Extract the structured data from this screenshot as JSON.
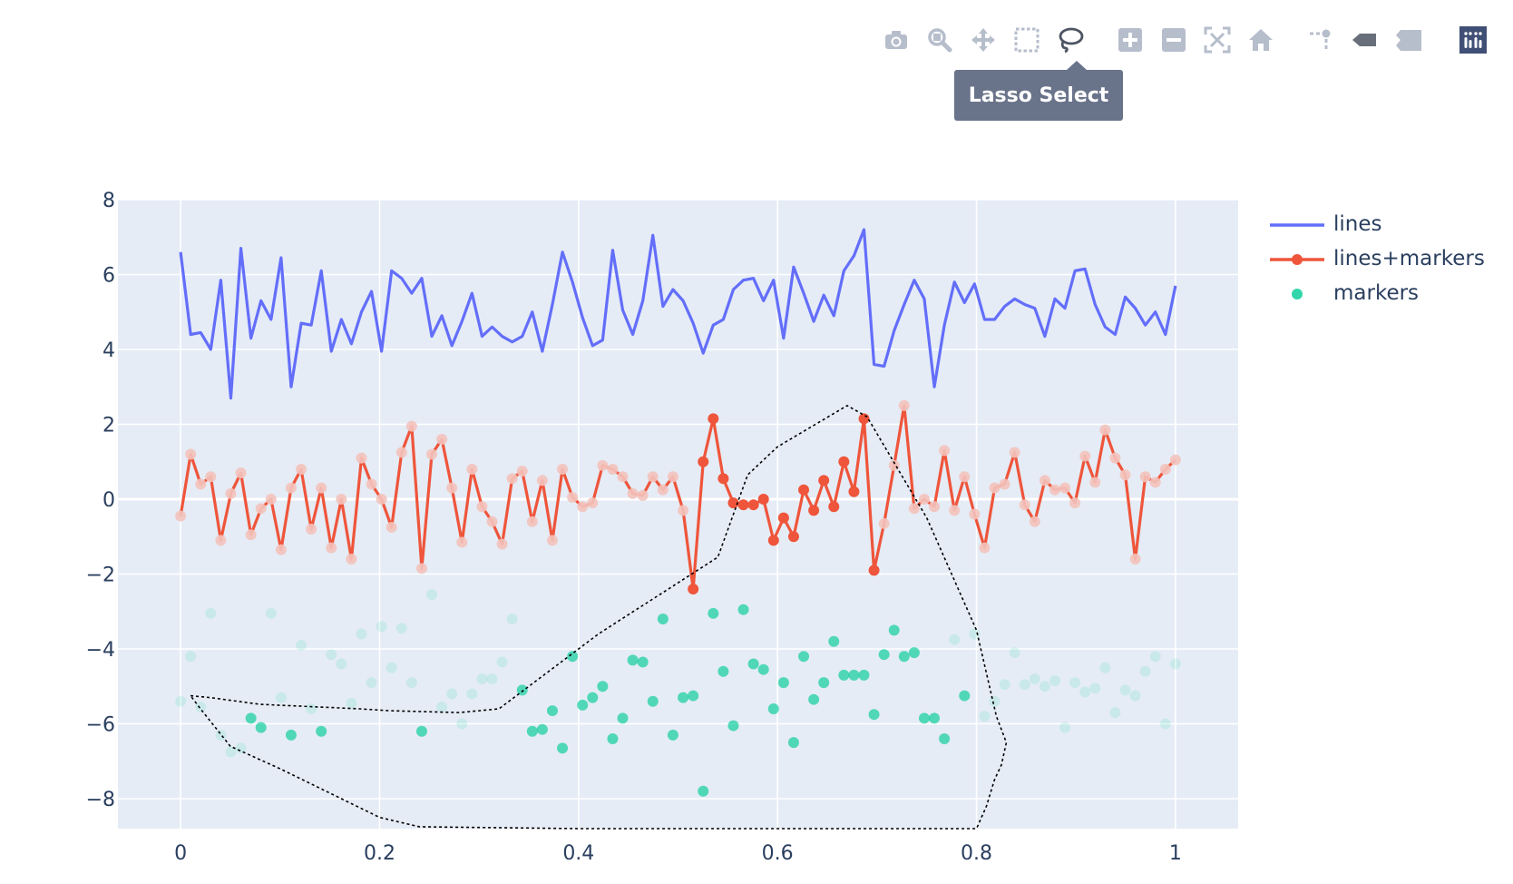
{
  "modebar": {
    "buttons": [
      {
        "name": "camera-icon",
        "tip": "Download plot as a png"
      },
      {
        "name": "zoom-icon",
        "tip": "Zoom"
      },
      {
        "name": "pan-icon",
        "tip": "Pan"
      },
      {
        "name": "box-select-icon",
        "tip": "Box Select"
      },
      {
        "name": "lasso-select-icon",
        "tip": "Lasso Select"
      },
      {
        "name": "zoom-in-icon",
        "tip": "Zoom in"
      },
      {
        "name": "zoom-out-icon",
        "tip": "Zoom out"
      },
      {
        "name": "autoscale-icon",
        "tip": "Autoscale"
      },
      {
        "name": "home-icon",
        "tip": "Reset axes"
      },
      {
        "name": "spike-lines-icon",
        "tip": "Toggle Spike Lines"
      },
      {
        "name": "hover-closest-icon",
        "tip": "Show closest data on hover"
      },
      {
        "name": "hover-compare-icon",
        "tip": "Compare data on hover"
      },
      {
        "name": "plotly-logo-icon",
        "tip": "Produced with Plotly"
      }
    ],
    "active_tooltip": "Lasso Select"
  },
  "colors": {
    "lines": "#636efa",
    "lines_markers": "#ef553b",
    "markers": "#00cc96",
    "plot_bg": "#e5ecf6",
    "grid": "#ffffff",
    "text": "#2a3f5f",
    "modebar_icon": "#b6bdcb"
  },
  "chart_data": {
    "type": "line",
    "title": "",
    "xlabel": "",
    "ylabel": "",
    "xlim": [
      -0.063,
      1.063
    ],
    "ylim": [
      -8.8,
      8
    ],
    "xticks": [
      0,
      0.2,
      0.4,
      0.6,
      0.8,
      1
    ],
    "xtick_labels": [
      "0",
      "0.2",
      "0.4",
      "0.6",
      "0.8",
      "1"
    ],
    "yticks": [
      8,
      6,
      4,
      2,
      0,
      -2,
      -4,
      -6,
      -8
    ],
    "ytick_labels": [
      "8",
      "6",
      "4",
      "2",
      "0",
      "−2",
      "−4",
      "−6",
      "−8"
    ],
    "grid": true,
    "legend_position": "top-right",
    "series": [
      {
        "name": "lines",
        "mode": "lines",
        "x": [
          0,
          0.0101,
          0.0202,
          0.0303,
          0.0404,
          0.0505,
          0.0606,
          0.0707,
          0.0808,
          0.0909,
          0.101,
          0.1111,
          0.1212,
          0.1313,
          0.1414,
          0.1515,
          0.1616,
          0.1717,
          0.1818,
          0.1919,
          0.202,
          0.2121,
          0.2222,
          0.2323,
          0.2424,
          0.2525,
          0.2626,
          0.2727,
          0.2828,
          0.2929,
          0.303,
          0.3131,
          0.3232,
          0.3333,
          0.3434,
          0.3535,
          0.3636,
          0.3737,
          0.3838,
          0.3939,
          0.404,
          0.4141,
          0.4242,
          0.4343,
          0.4444,
          0.4545,
          0.4646,
          0.4747,
          0.4848,
          0.4949,
          0.5051,
          0.5152,
          0.5253,
          0.5354,
          0.5455,
          0.5556,
          0.5657,
          0.5758,
          0.5859,
          0.596,
          0.6061,
          0.6162,
          0.6263,
          0.6364,
          0.6465,
          0.6566,
          0.6667,
          0.6768,
          0.6869,
          0.697,
          0.7071,
          0.7172,
          0.7273,
          0.7374,
          0.7475,
          0.7576,
          0.7677,
          0.7778,
          0.7879,
          0.798,
          0.8081,
          0.8182,
          0.8283,
          0.8384,
          0.8485,
          0.8586,
          0.8687,
          0.8788,
          0.8889,
          0.899,
          0.9091,
          0.9192,
          0.9293,
          0.9394,
          0.9495,
          0.9596,
          0.9697,
          0.9798,
          0.9899,
          1.0
        ],
        "y": [
          6.6,
          4.4,
          4.45,
          4.0,
          5.85,
          2.7,
          6.7,
          4.3,
          5.3,
          4.8,
          6.45,
          3.0,
          4.7,
          4.65,
          6.1,
          3.95,
          4.8,
          4.15,
          5.0,
          5.55,
          3.95,
          6.1,
          5.9,
          5.5,
          5.9,
          4.35,
          4.9,
          4.1,
          4.75,
          5.5,
          4.35,
          4.6,
          4.35,
          4.2,
          4.35,
          5.0,
          3.95,
          5.2,
          6.6,
          5.8,
          4.85,
          4.1,
          4.25,
          6.65,
          5.05,
          4.4,
          5.3,
          7.05,
          5.15,
          5.6,
          5.3,
          4.7,
          3.9,
          4.65,
          4.8,
          5.6,
          5.85,
          5.9,
          5.3,
          5.85,
          4.3,
          6.2,
          5.5,
          4.75,
          5.45,
          4.9,
          6.1,
          6.5,
          7.2,
          3.6,
          3.55,
          4.5,
          5.2,
          5.85,
          5.35,
          3.0,
          4.65,
          5.8,
          5.25,
          5.75,
          4.8,
          4.8,
          5.15,
          5.35,
          5.2,
          5.1,
          4.35,
          5.35,
          5.1,
          6.1,
          6.15,
          5.2,
          4.6,
          4.4,
          5.4,
          5.1,
          4.65,
          5.0,
          4.4,
          5.7
        ]
      },
      {
        "name": "lines+markers",
        "mode": "lines+markers",
        "x": [
          0,
          0.0101,
          0.0202,
          0.0303,
          0.0404,
          0.0505,
          0.0606,
          0.0707,
          0.0808,
          0.0909,
          0.101,
          0.1111,
          0.1212,
          0.1313,
          0.1414,
          0.1515,
          0.1616,
          0.1717,
          0.1818,
          0.1919,
          0.202,
          0.2121,
          0.2222,
          0.2323,
          0.2424,
          0.2525,
          0.2626,
          0.2727,
          0.2828,
          0.2929,
          0.303,
          0.3131,
          0.3232,
          0.3333,
          0.3434,
          0.3535,
          0.3636,
          0.3737,
          0.3838,
          0.3939,
          0.404,
          0.4141,
          0.4242,
          0.4343,
          0.4444,
          0.4545,
          0.4646,
          0.4747,
          0.4848,
          0.4949,
          0.5051,
          0.5152,
          0.5253,
          0.5354,
          0.5455,
          0.5556,
          0.5657,
          0.5758,
          0.5859,
          0.596,
          0.6061,
          0.6162,
          0.6263,
          0.6364,
          0.6465,
          0.6566,
          0.6667,
          0.6768,
          0.6869,
          0.697,
          0.7071,
          0.7172,
          0.7273,
          0.7374,
          0.7475,
          0.7576,
          0.7677,
          0.7778,
          0.7879,
          0.798,
          0.8081,
          0.8182,
          0.8283,
          0.8384,
          0.8485,
          0.8586,
          0.8687,
          0.8788,
          0.8889,
          0.899,
          0.9091,
          0.9192,
          0.9293,
          0.9394,
          0.9495,
          0.9596,
          0.9697,
          0.9798,
          0.9899,
          1.0
        ],
        "y": [
          -0.45,
          1.2,
          0.4,
          0.6,
          -1.1,
          0.15,
          0.7,
          -0.95,
          -0.25,
          0.0,
          -1.35,
          0.3,
          0.8,
          -0.8,
          0.3,
          -1.3,
          0.0,
          -1.6,
          1.1,
          0.4,
          0.0,
          -0.75,
          1.25,
          1.95,
          -1.85,
          1.2,
          1.6,
          0.3,
          -1.15,
          0.8,
          -0.2,
          -0.6,
          -1.2,
          0.55,
          0.75,
          -0.6,
          0.5,
          -1.1,
          0.8,
          0.05,
          -0.2,
          -0.1,
          0.9,
          0.8,
          0.6,
          0.15,
          0.1,
          0.6,
          0.25,
          0.6,
          -0.3,
          -2.4,
          1.0,
          2.15,
          0.55,
          -0.1,
          -0.15,
          -0.15,
          0.0,
          -1.1,
          -0.5,
          -1.0,
          0.25,
          -0.3,
          0.5,
          -0.2,
          1.0,
          0.2,
          2.15,
          -1.9,
          -0.65,
          0.9,
          2.5,
          -0.25,
          0.0,
          -0.2,
          1.3,
          -0.3,
          0.6,
          -0.4,
          -1.3,
          0.3,
          0.4,
          1.25,
          -0.15,
          -0.6,
          0.5,
          0.25,
          0.3,
          -0.1,
          1.15,
          0.45,
          1.85,
          1.1,
          0.65,
          -1.6,
          0.6,
          0.45,
          0.8,
          1.05
        ],
        "selected_x_range": [
          0.515,
          0.697
        ]
      },
      {
        "name": "markers",
        "mode": "markers",
        "x": [
          0,
          0.0101,
          0.0202,
          0.0303,
          0.0404,
          0.0505,
          0.0606,
          0.0707,
          0.0808,
          0.0909,
          0.101,
          0.1111,
          0.1212,
          0.1313,
          0.1414,
          0.1515,
          0.1616,
          0.1717,
          0.1818,
          0.1919,
          0.202,
          0.2121,
          0.2222,
          0.2323,
          0.2424,
          0.2525,
          0.2626,
          0.2727,
          0.2828,
          0.2929,
          0.303,
          0.3131,
          0.3232,
          0.3333,
          0.3434,
          0.3535,
          0.3636,
          0.3737,
          0.3838,
          0.3939,
          0.404,
          0.4141,
          0.4242,
          0.4343,
          0.4444,
          0.4545,
          0.4646,
          0.4747,
          0.4848,
          0.4949,
          0.5051,
          0.5152,
          0.5253,
          0.5354,
          0.5455,
          0.5556,
          0.5657,
          0.5758,
          0.5859,
          0.596,
          0.6061,
          0.6162,
          0.6263,
          0.6364,
          0.6465,
          0.6566,
          0.6667,
          0.6768,
          0.6869,
          0.697,
          0.7071,
          0.7172,
          0.7273,
          0.7374,
          0.7475,
          0.7576,
          0.7677,
          0.7778,
          0.7879,
          0.798,
          0.8081,
          0.8182,
          0.8283,
          0.8384,
          0.8485,
          0.8586,
          0.8687,
          0.8788,
          0.8889,
          0.899,
          0.9091,
          0.9192,
          0.9293,
          0.9394,
          0.9495,
          0.9596,
          0.9697,
          0.9798,
          0.9899,
          1.0
        ],
        "y": [
          -5.4,
          -4.2,
          -5.55,
          -3.05,
          -6.3,
          -6.75,
          -6.65,
          -5.85,
          -6.1,
          -3.05,
          -5.3,
          -6.3,
          -3.9,
          -5.6,
          -6.2,
          -4.15,
          -4.4,
          -5.45,
          -3.6,
          -4.9,
          -3.4,
          -4.5,
          -3.45,
          -4.9,
          -6.2,
          -2.55,
          -5.55,
          -5.2,
          -6.0,
          -5.2,
          -4.8,
          -4.8,
          -4.35,
          -3.2,
          -5.1,
          -6.2,
          -6.15,
          -5.65,
          -6.65,
          -4.2,
          -5.5,
          -5.3,
          -5.0,
          -6.4,
          -5.85,
          -4.3,
          -4.35,
          -5.4,
          -3.2,
          -6.3,
          -5.3,
          -5.25,
          -7.8,
          -3.05,
          -4.6,
          -6.05,
          -2.95,
          -4.4,
          -4.55,
          -5.6,
          -4.9,
          -6.5,
          -4.2,
          -5.35,
          -4.9,
          -3.8,
          -4.7,
          -4.7,
          -4.7,
          -5.75,
          -4.15,
          -3.5,
          -4.2,
          -4.1,
          -5.85,
          -5.85,
          -6.4,
          -3.75,
          -5.25,
          -3.6,
          -5.8,
          -5.4,
          -4.95,
          -4.1,
          -4.95,
          -4.8,
          -5.0,
          -4.85,
          -6.1,
          -4.9,
          -5.15,
          -5.05,
          -4.5,
          -5.7,
          -5.1,
          -5.25,
          -4.6,
          -4.2,
          -6.0,
          -4.4
        ],
        "selected": [
          false,
          false,
          false,
          false,
          false,
          false,
          false,
          true,
          true,
          false,
          false,
          true,
          false,
          false,
          true,
          false,
          false,
          false,
          false,
          false,
          false,
          false,
          false,
          false,
          true,
          false,
          false,
          false,
          false,
          false,
          false,
          false,
          false,
          false,
          true,
          true,
          true,
          true,
          true,
          true,
          true,
          true,
          true,
          true,
          true,
          true,
          true,
          true,
          true,
          true,
          true,
          true,
          true,
          true,
          true,
          true,
          true,
          true,
          true,
          true,
          true,
          true,
          true,
          true,
          true,
          true,
          true,
          true,
          true,
          true,
          true,
          true,
          true,
          true,
          true,
          true,
          true,
          false,
          true,
          false,
          false,
          false,
          false,
          false,
          false,
          false,
          false,
          false,
          false,
          false,
          false,
          false,
          false,
          false,
          false,
          false,
          false,
          false,
          false,
          false
        ]
      }
    ],
    "lasso_path": [
      [
        0.01,
        -5.25
      ],
      [
        0.03,
        -5.3
      ],
      [
        0.08,
        -5.48
      ],
      [
        0.18,
        -5.6
      ],
      [
        0.21,
        -5.65
      ],
      [
        0.28,
        -5.7
      ],
      [
        0.32,
        -5.6
      ],
      [
        0.42,
        -3.6
      ],
      [
        0.54,
        -1.55
      ],
      [
        0.57,
        0.65
      ],
      [
        0.6,
        1.4
      ],
      [
        0.67,
        2.5
      ],
      [
        0.69,
        2.2
      ],
      [
        0.75,
        -0.5
      ],
      [
        0.8,
        -3.5
      ],
      [
        0.82,
        -5.8
      ],
      [
        0.83,
        -6.5
      ],
      [
        0.825,
        -7.1
      ],
      [
        0.818,
        -7.5
      ],
      [
        0.81,
        -8.2
      ],
      [
        0.8,
        -8.8
      ],
      [
        0.77,
        -8.8
      ],
      [
        0.6,
        -8.8
      ],
      [
        0.4,
        -8.8
      ],
      [
        0.24,
        -8.75
      ],
      [
        0.2,
        -8.5
      ],
      [
        0.1,
        -7.2
      ],
      [
        0.05,
        -6.6
      ],
      [
        0.02,
        -5.6
      ],
      [
        0.01,
        -5.25
      ]
    ]
  },
  "legend": {
    "items": [
      {
        "label": "lines"
      },
      {
        "label": "lines+markers"
      },
      {
        "label": "markers"
      }
    ]
  }
}
